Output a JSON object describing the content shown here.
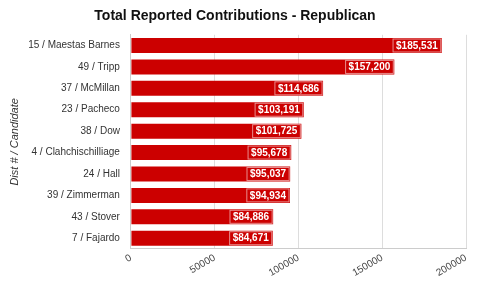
{
  "chart_data": {
    "type": "bar",
    "orientation": "horizontal",
    "title": "Total Reported Contributions - Republican",
    "ylabel": "Dist # / Candidate",
    "categories": [
      "15 / Maestas Barnes",
      "49 / Tripp",
      "37 / McMillan",
      "23 / Pacheco",
      "38 / Dow",
      "4 / Clahchischilliage",
      "24 / Hall",
      "39 / Zimmerman",
      "43 / Stover",
      "7 / Fajardo"
    ],
    "values": [
      185531,
      157200,
      114686,
      103191,
      101725,
      95678,
      95037,
      94934,
      84886,
      84671
    ],
    "value_labels": [
      "$185,531",
      "$157,200",
      "$114,686",
      "$103,191",
      "$101,725",
      "$95,678",
      "$95,037",
      "$94,934",
      "$84,886",
      "$84,671"
    ],
    "data_labels": true,
    "color": "#cc0000",
    "xlim": [
      0,
      200000
    ],
    "xticks": [
      0,
      50000,
      100000,
      150000,
      200000
    ],
    "grid": true
  }
}
